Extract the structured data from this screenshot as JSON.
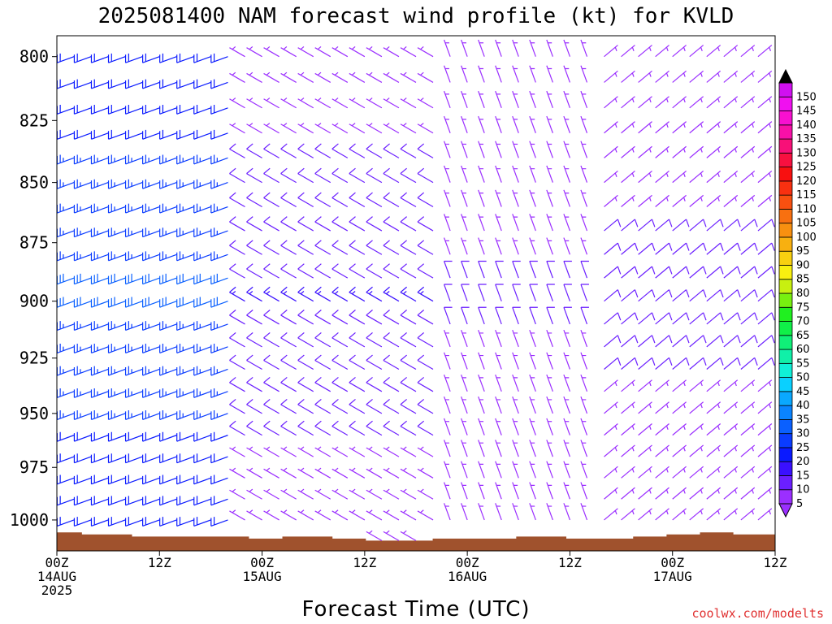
{
  "chart_data": {
    "type": "wind_barb_time_height",
    "title": "2025081400 NAM forecast wind profile (kt) for KVLD",
    "xlabel": "Forecast Time (UTC)",
    "ylabel": "",
    "x_ticks": [
      {
        "hour": 0,
        "labels": [
          "00Z",
          "14AUG",
          "2025"
        ]
      },
      {
        "hour": 12,
        "labels": [
          "12Z"
        ]
      },
      {
        "hour": 24,
        "labels": [
          "00Z",
          "15AUG"
        ]
      },
      {
        "hour": 36,
        "labels": [
          "12Z"
        ]
      },
      {
        "hour": 48,
        "labels": [
          "00Z",
          "16AUG"
        ]
      },
      {
        "hour": 60,
        "labels": [
          "12Z"
        ]
      },
      {
        "hour": 72,
        "labels": [
          "00Z",
          "17AUG"
        ]
      },
      {
        "hour": 84,
        "labels": [
          "12Z"
        ]
      }
    ],
    "xlim_hours": [
      0,
      84
    ],
    "barb_interval_hours": 2,
    "y_ticks": [
      800,
      825,
      850,
      875,
      900,
      925,
      950,
      975,
      1000
    ],
    "ylim_hPa": [
      792,
      1015
    ],
    "y_scale": "log-pressure",
    "pressure_levels_hPa": [
      790,
      800,
      810,
      820,
      830,
      840,
      850,
      860,
      870,
      880,
      890,
      900,
      910,
      920,
      930,
      940,
      950,
      960,
      970,
      980,
      990,
      1000,
      1010
    ],
    "surface_pressure_hPa": [
      1006,
      1006,
      1007,
      1007,
      1007,
      1008,
      1008,
      1008,
      1008,
      1008,
      1008,
      1008,
      1009,
      1009,
      1008,
      1008,
      1008,
      1009,
      1009,
      1010,
      1010,
      1010,
      1010,
      1009,
      1009,
      1009,
      1009,
      1009,
      1008,
      1008,
      1008,
      1009,
      1009,
      1009,
      1009,
      1008,
      1008,
      1007,
      1007,
      1006,
      1006,
      1007,
      1007,
      1007
    ],
    "wind_regimes": [
      {
        "hours": [
          0,
          21
        ],
        "levels_hPa": [
          790,
          1000
        ],
        "direction_deg": 250,
        "speed_kt": [
          20,
          30
        ],
        "note": "strong west-southwesterly, blue barbs"
      },
      {
        "hours": [
          0,
          21
        ],
        "levels_hPa": [
          1000,
          1010
        ],
        "direction_deg": 230,
        "speed_kt": [
          10,
          15
        ]
      },
      {
        "hours": [
          22,
          44
        ],
        "levels_hPa": [
          790,
          1010
        ],
        "direction_deg": 300,
        "speed_kt": [
          5,
          15
        ],
        "note": "weak northwesterly, purple barbs"
      },
      {
        "hours": [
          46,
          62
        ],
        "levels_hPa": [
          790,
          1010
        ],
        "direction_deg": 340,
        "speed_kt": [
          5,
          10
        ]
      },
      {
        "hours": [
          64,
          84
        ],
        "levels_hPa": [
          790,
          1010
        ],
        "direction_deg": 50,
        "speed_kt": [
          5,
          12
        ],
        "note": "light northeasterly"
      }
    ],
    "colorbar": {
      "values": [
        5,
        10,
        15,
        20,
        25,
        30,
        35,
        40,
        45,
        50,
        55,
        60,
        65,
        70,
        75,
        80,
        85,
        90,
        95,
        100,
        105,
        110,
        115,
        120,
        125,
        130,
        135,
        140,
        145,
        150
      ],
      "colors": [
        "#9b2fff",
        "#6b1fff",
        "#3a10ff",
        "#0a1aff",
        "#0a3cff",
        "#0a60ff",
        "#0a84ff",
        "#0aa8ff",
        "#0ad0ff",
        "#10f0d8",
        "#10f0a8",
        "#10f078",
        "#10f048",
        "#20f020",
        "#78f010",
        "#c8f010",
        "#f8f010",
        "#f8d010",
        "#f8b010",
        "#f89010",
        "#f87010",
        "#f85010",
        "#f83010",
        "#f81010",
        "#f81040",
        "#f81078",
        "#f810a8",
        "#f810d0",
        "#f010f0",
        "#d010f0"
      ]
    },
    "grid": false,
    "legend": "right colorbar"
  },
  "watermark": "coolwx.com/modelts"
}
